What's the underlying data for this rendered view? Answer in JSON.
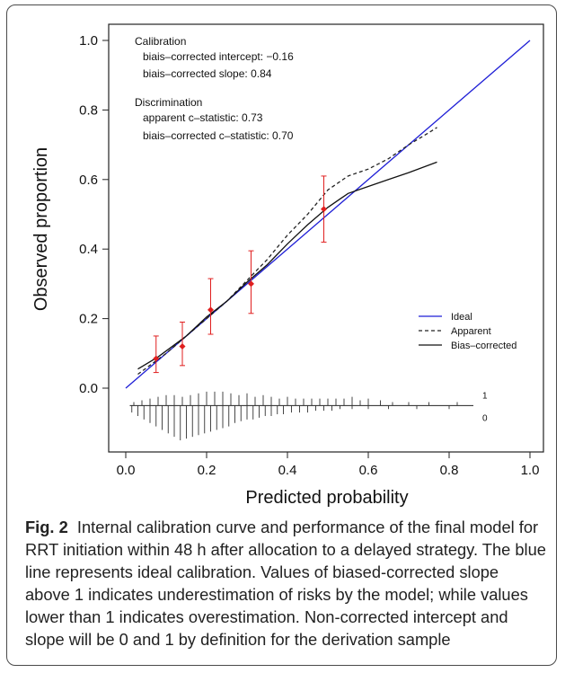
{
  "chart_data": {
    "type": "line",
    "xlabel": "Predicted probability",
    "ylabel": "Observed proportion",
    "xlim": [
      0.0,
      1.0
    ],
    "ylim": [
      0.0,
      1.0
    ],
    "x_ticks": [
      "0.0",
      "0.2",
      "0.4",
      "0.6",
      "0.8",
      "1.0"
    ],
    "y_ticks": [
      "0.0",
      "0.2",
      "0.4",
      "0.6",
      "0.8",
      "1.0"
    ],
    "grid": false,
    "legend_position": "bottom-right",
    "series": [
      {
        "name": "Ideal",
        "color": "#1f1fd6",
        "style": "solid",
        "x": [
          0.0,
          1.0
        ],
        "y": [
          0.0,
          1.0
        ]
      },
      {
        "name": "Apparent",
        "color": "#222222",
        "style": "dashed",
        "x": [
          0.03,
          0.1,
          0.15,
          0.2,
          0.25,
          0.3,
          0.35,
          0.4,
          0.45,
          0.5,
          0.55,
          0.6,
          0.65,
          0.7,
          0.75,
          0.77
        ],
        "y": [
          0.04,
          0.1,
          0.15,
          0.2,
          0.25,
          0.31,
          0.37,
          0.44,
          0.5,
          0.57,
          0.61,
          0.63,
          0.66,
          0.7,
          0.735,
          0.75
        ]
      },
      {
        "name": "Bias–corrected",
        "color": "#111111",
        "style": "solid",
        "x": [
          0.03,
          0.08,
          0.15,
          0.2,
          0.25,
          0.3,
          0.35,
          0.4,
          0.45,
          0.5,
          0.55,
          0.6,
          0.65,
          0.7,
          0.77
        ],
        "y": [
          0.055,
          0.09,
          0.15,
          0.205,
          0.25,
          0.305,
          0.355,
          0.415,
          0.47,
          0.52,
          0.56,
          0.58,
          0.6,
          0.62,
          0.65
        ]
      }
    ],
    "points": {
      "color": "#e01f1f",
      "x": [
        0.075,
        0.14,
        0.21,
        0.31,
        0.49
      ],
      "y": [
        0.085,
        0.12,
        0.225,
        0.3,
        0.515
      ],
      "lower": [
        0.045,
        0.065,
        0.155,
        0.215,
        0.42
      ],
      "upper": [
        0.15,
        0.19,
        0.315,
        0.395,
        0.61
      ]
    },
    "rug": {
      "labels": [
        "1",
        "0"
      ],
      "baseline_y": -0.05,
      "events_x": [
        0.02,
        0.04,
        0.06,
        0.08,
        0.1,
        0.12,
        0.14,
        0.16,
        0.18,
        0.2,
        0.22,
        0.24,
        0.26,
        0.28,
        0.3,
        0.32,
        0.34,
        0.36,
        0.38,
        0.4,
        0.42,
        0.44,
        0.46,
        0.48,
        0.5,
        0.52,
        0.54,
        0.56,
        0.58,
        0.6,
        0.63,
        0.66,
        0.7,
        0.75,
        0.82
      ],
      "events_h": [
        0.01,
        0.015,
        0.02,
        0.025,
        0.03,
        0.03,
        0.025,
        0.03,
        0.035,
        0.04,
        0.04,
        0.04,
        0.035,
        0.03,
        0.035,
        0.025,
        0.03,
        0.025,
        0.02,
        0.025,
        0.02,
        0.02,
        0.02,
        0.02,
        0.02,
        0.02,
        0.02,
        0.025,
        0.015,
        0.02,
        0.015,
        0.01,
        0.01,
        0.01,
        0.01
      ],
      "nonevents_x": [
        0.015,
        0.03,
        0.045,
        0.06,
        0.075,
        0.09,
        0.105,
        0.12,
        0.135,
        0.15,
        0.165,
        0.18,
        0.195,
        0.21,
        0.225,
        0.24,
        0.255,
        0.27,
        0.285,
        0.3,
        0.315,
        0.33,
        0.345,
        0.36,
        0.375,
        0.39,
        0.41,
        0.43,
        0.45,
        0.47,
        0.49,
        0.51,
        0.53,
        0.56,
        0.6,
        0.65,
        0.72,
        0.8
      ],
      "nonevents_h": [
        0.02,
        0.03,
        0.04,
        0.05,
        0.06,
        0.07,
        0.08,
        0.09,
        0.1,
        0.095,
        0.09,
        0.085,
        0.08,
        0.075,
        0.07,
        0.065,
        0.06,
        0.05,
        0.045,
        0.04,
        0.04,
        0.035,
        0.03,
        0.03,
        0.025,
        0.025,
        0.02,
        0.02,
        0.02,
        0.015,
        0.015,
        0.015,
        0.01,
        0.01,
        0.01,
        0.01,
        0.01,
        0.01
      ]
    },
    "annotations": {
      "calibration_title": "Calibration",
      "calibration_intercept": "biais–corrected intercept: −0.16",
      "calibration_slope": "biais–corrected slope: 0.84",
      "discrimination_title": "Discrimination",
      "apparent_c": "apparent c–statistic: 0.73",
      "corrected_c": "biais–corrected c–statistic: 0.70"
    }
  },
  "caption": {
    "label": "Fig. 2",
    "text": "Internal calibration curve and performance of the final model for RRT initiation within 48 h after allocation to a delayed strategy. The blue line represents ideal calibration. Values of biased-corrected slope above 1 indicates underestimation of risks by the model; while values lower than 1 indicates overestimation. Non-corrected intercept and slope will be 0 and 1 by definition for the derivation sample"
  }
}
